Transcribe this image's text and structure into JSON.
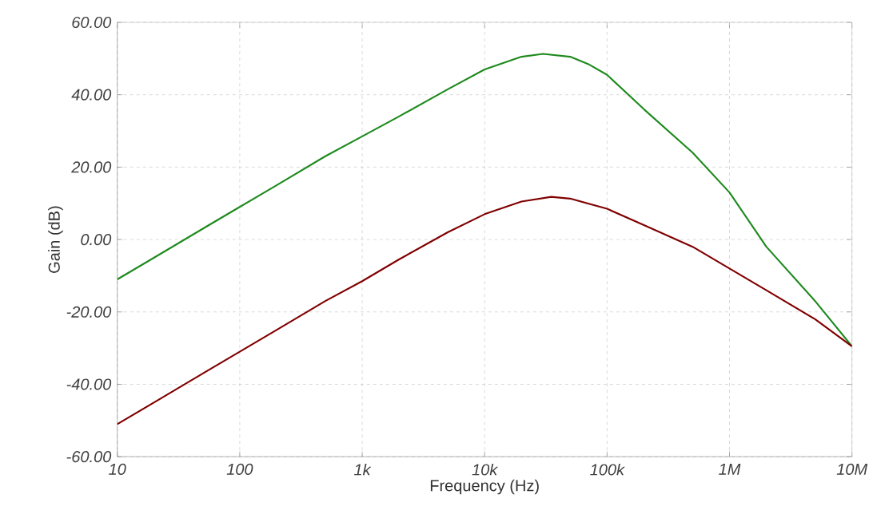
{
  "chart_data": {
    "type": "line",
    "xlabel": "Frequency (Hz)",
    "ylabel": "Gain (dB)",
    "log": "x",
    "xlim": [
      10,
      10000000
    ],
    "ylim": [
      -60,
      60
    ],
    "xticks": [
      10,
      100,
      {
        "value": 1000,
        "label": "1k"
      },
      {
        "value": 10000,
        "label": "10k"
      },
      {
        "value": 100000,
        "label": "100k"
      },
      {
        "value": 1000000,
        "label": "1M"
      },
      {
        "value": 10000000,
        "label": "10M"
      }
    ],
    "yticks": [
      {
        "value": -60,
        "label": "-60.00"
      },
      {
        "value": -40,
        "label": "-40.00"
      },
      {
        "value": -20,
        "label": "-20.00"
      },
      {
        "value": 0,
        "label": "0.00"
      },
      {
        "value": 20,
        "label": "20.00"
      },
      {
        "value": 40,
        "label": "40.00"
      },
      {
        "value": 60,
        "label": "60.00"
      }
    ],
    "grid": true,
    "marker": "none",
    "line_style": "solid",
    "series": [
      {
        "color": "#1e8a1e",
        "x": [
          10,
          20,
          50,
          100,
          200,
          500,
          1000,
          2000,
          5000,
          10000,
          20000,
          30000,
          50000,
          70000,
          100000,
          200000,
          500000,
          1000000,
          2000000,
          5000000,
          10000000
        ],
        "values": [
          -11,
          -5,
          3,
          9,
          15,
          23,
          28.5,
          34,
          41.5,
          47,
          50.5,
          51.3,
          50.5,
          48.5,
          45.5,
          36,
          24,
          13,
          -2,
          -17,
          -29.5
        ]
      },
      {
        "color": "#800000",
        "x": [
          10,
          20,
          50,
          100,
          200,
          500,
          1000,
          2000,
          5000,
          10000,
          20000,
          35000,
          50000,
          100000,
          200000,
          500000,
          1000000,
          2000000,
          5000000,
          10000000
        ],
        "values": [
          -51,
          -45,
          -37,
          -31,
          -25,
          -17,
          -11.5,
          -5.5,
          2,
          7,
          10.5,
          11.8,
          11.3,
          8.5,
          4,
          -2,
          -8,
          -14,
          -22,
          -29.5
        ]
      }
    ]
  }
}
